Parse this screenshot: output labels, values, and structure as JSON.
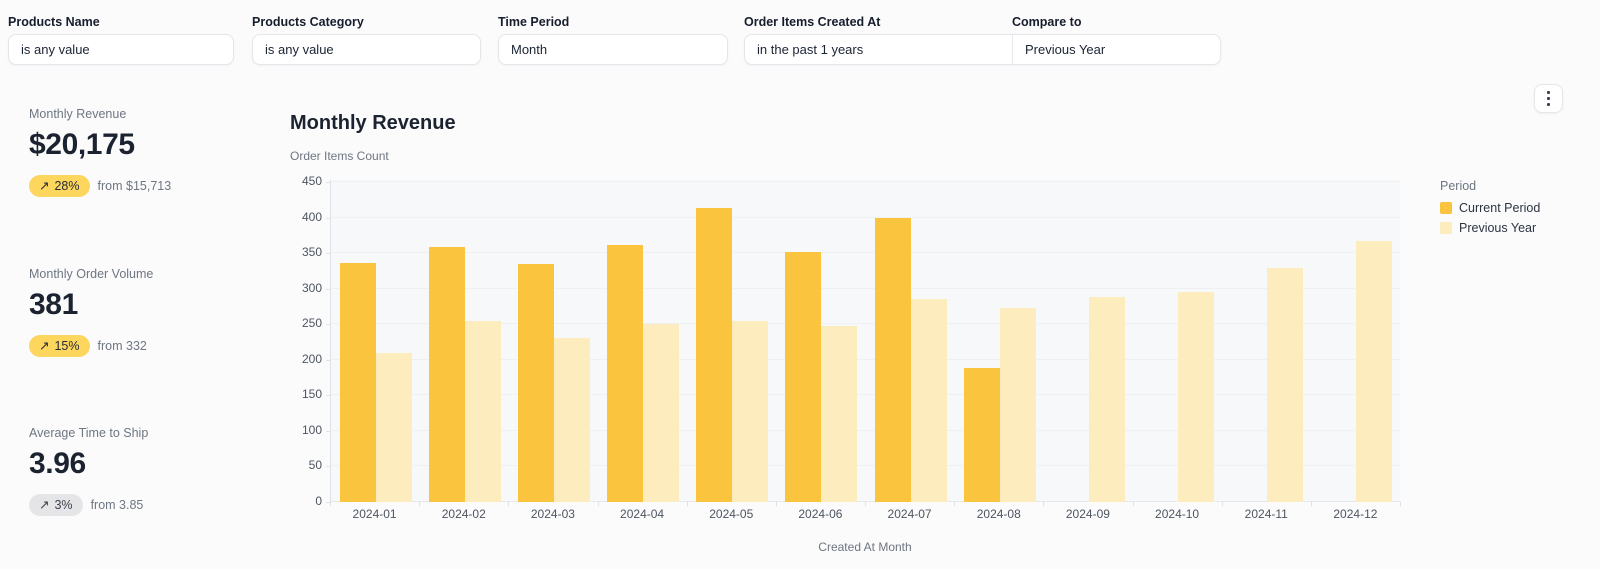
{
  "filters": [
    {
      "label": "Products Name",
      "value": "is any value"
    },
    {
      "label": "Products Category",
      "value": "is any value"
    },
    {
      "label": "Time Period",
      "value": "Month"
    },
    {
      "label": "Order Items Created At",
      "value": "in the past 1 years"
    },
    {
      "label": "Compare to",
      "value": "Previous Year"
    }
  ],
  "menu": {
    "icon": "kebab-vertical-icon"
  },
  "kpis": [
    {
      "label": "Monthly Revenue",
      "value": "$20,175",
      "arrow": "↗",
      "percent": "28%",
      "from": "from $15,713",
      "badge_color": "#fcd65d"
    },
    {
      "label": "Monthly Order Volume",
      "value": "381",
      "arrow": "↗",
      "percent": "15%",
      "from": "from 332",
      "badge_color": "#fcd65d"
    },
    {
      "label": "Average Time to Ship",
      "value": "3.96",
      "arrow": "↗",
      "percent": "3%",
      "from": "from 3.85",
      "badge_color": "#e5e5e8"
    }
  ],
  "chart_data": {
    "type": "bar",
    "title": "Monthly Revenue",
    "ylabel": "Order Items Count",
    "xlabel": "Created At Month",
    "categories": [
      "2024-01",
      "2024-02",
      "2024-03",
      "2024-04",
      "2024-05",
      "2024-06",
      "2024-07",
      "2024-08",
      "2024-09",
      "2024-10",
      "2024-11",
      "2024-12"
    ],
    "series": [
      {
        "name": "Current Period",
        "color": "#fac43f",
        "values": [
          336,
          358,
          335,
          361,
          414,
          351,
          400,
          188,
          null,
          null,
          null,
          null
        ]
      },
      {
        "name": "Previous Year",
        "color": "#fdedbe",
        "values": [
          210,
          254,
          230,
          251,
          255,
          247,
          286,
          273,
          289,
          296,
          329,
          367
        ]
      }
    ],
    "ylim": [
      0,
      450
    ],
    "ytick_step": 50,
    "grid": true,
    "legend_title": "Period",
    "legend_position": "right"
  }
}
